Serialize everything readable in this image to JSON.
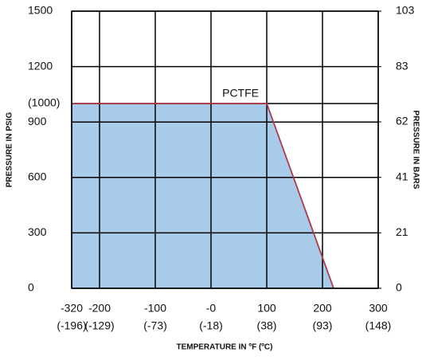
{
  "chart_data": {
    "type": "area",
    "xlabel": "TEMPERATURE IN ºF (ºC)",
    "ylabel": "PRESSURE IN PSIG",
    "y2label": "PRESSURE IN BARS",
    "x": [
      -320,
      100,
      220
    ],
    "series": [
      {
        "name": "PCTFE",
        "color": "#b03a48",
        "fill": "#a8cbea",
        "values": [
          1000,
          1000,
          0
        ]
      }
    ],
    "xlim": [
      -320,
      300
    ],
    "xticks": [
      -320,
      -200,
      -100,
      {
        "value": 0,
        "label": "-0"
      },
      100,
      200,
      300
    ],
    "x2ticks": [
      {
        "value": -196,
        "label": "(-196)"
      },
      {
        "value": -129,
        "label": "(-129)"
      },
      {
        "value": -73,
        "label": "(-73)"
      },
      {
        "value": -18,
        "label": "(-18)"
      },
      {
        "value": 38,
        "label": "(38)"
      },
      {
        "value": 93,
        "label": "(93)"
      },
      {
        "value": 148,
        "label": "(148)"
      }
    ],
    "ylim": [
      0,
      1500
    ],
    "yticks": [
      0,
      300,
      600,
      900,
      {
        "value": 1000,
        "label": "(1000)"
      },
      1200,
      1500
    ],
    "y2lim": [
      0,
      103.4
    ],
    "y2ticks": [
      0,
      {
        "value": 20.7,
        "label": "21"
      },
      {
        "value": 41.4,
        "label": "41"
      },
      {
        "value": 62.1,
        "label": "62"
      },
      {
        "value": 82.7,
        "label": "83"
      },
      {
        "value": 103.4,
        "label": "103"
      }
    ],
    "grid": true
  }
}
